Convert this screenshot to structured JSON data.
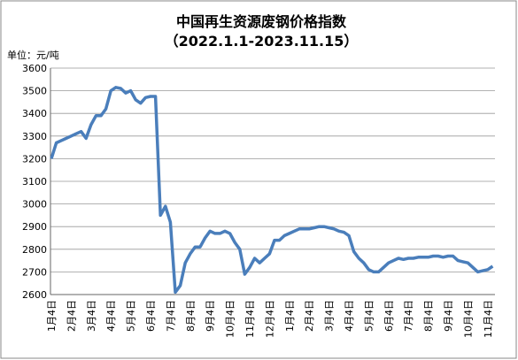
{
  "chart_data": {
    "type": "line",
    "title": "中国再生资源废钢价格指数",
    "subtitle": "（2022.1.1-2023.11.15）",
    "unit_label": "单位：元/吨",
    "categories": [
      "1月4日",
      null,
      null,
      null,
      "2月4日",
      null,
      null,
      null,
      "3月4日",
      null,
      null,
      null,
      "4月4日",
      null,
      null,
      null,
      "5月4日",
      null,
      null,
      null,
      "6月4日",
      null,
      null,
      null,
      "7月4日",
      null,
      null,
      null,
      "8月4日",
      null,
      null,
      null,
      "9月4日",
      null,
      null,
      null,
      "10月4日",
      null,
      null,
      null,
      "11月4日",
      null,
      null,
      null,
      "12月4日",
      null,
      null,
      null,
      "1月4日",
      null,
      null,
      null,
      "2月4日",
      null,
      null,
      null,
      "3月4日",
      null,
      null,
      null,
      "4月4日",
      null,
      null,
      null,
      "5月4日",
      null,
      null,
      null,
      "6月4日",
      null,
      null,
      null,
      "7月4日",
      null,
      null,
      null,
      "8月4日",
      null,
      null,
      null,
      "9月4日",
      null,
      null,
      null,
      "10月4日",
      null,
      null,
      null,
      "11月4日",
      null
    ],
    "series": [
      {
        "name": "废钢价格指数",
        "color": "#4a7ebb",
        "values": [
          3200,
          3270,
          3280,
          3290,
          3300,
          3310,
          3320,
          3290,
          3350,
          3390,
          3390,
          3420,
          3500,
          3515,
          3510,
          3490,
          3500,
          3460,
          3445,
          3470,
          3475,
          3475,
          2950,
          2990,
          2920,
          2610,
          2640,
          2740,
          2780,
          2810,
          2810,
          2850,
          2880,
          2870,
          2870,
          2880,
          2870,
          2830,
          2800,
          2690,
          2720,
          2760,
          2740,
          2760,
          2780,
          2840,
          2840,
          2860,
          2870,
          2880,
          2890,
          2890,
          2890,
          2895,
          2900,
          2900,
          2895,
          2890,
          2880,
          2875,
          2860,
          2790,
          2760,
          2740,
          2710,
          2700,
          2700,
          2720,
          2740,
          2750,
          2760,
          2755,
          2760,
          2760,
          2765,
          2765,
          2765,
          2770,
          2770,
          2765,
          2770,
          2770,
          2750,
          2745,
          2740,
          2720,
          2700,
          2705,
          2710,
          2725
        ]
      }
    ],
    "ylim": [
      2600,
      3600
    ],
    "yticks": [
      2600,
      2700,
      2800,
      2900,
      3000,
      3100,
      3200,
      3300,
      3400,
      3500,
      3600
    ],
    "grid": true
  }
}
